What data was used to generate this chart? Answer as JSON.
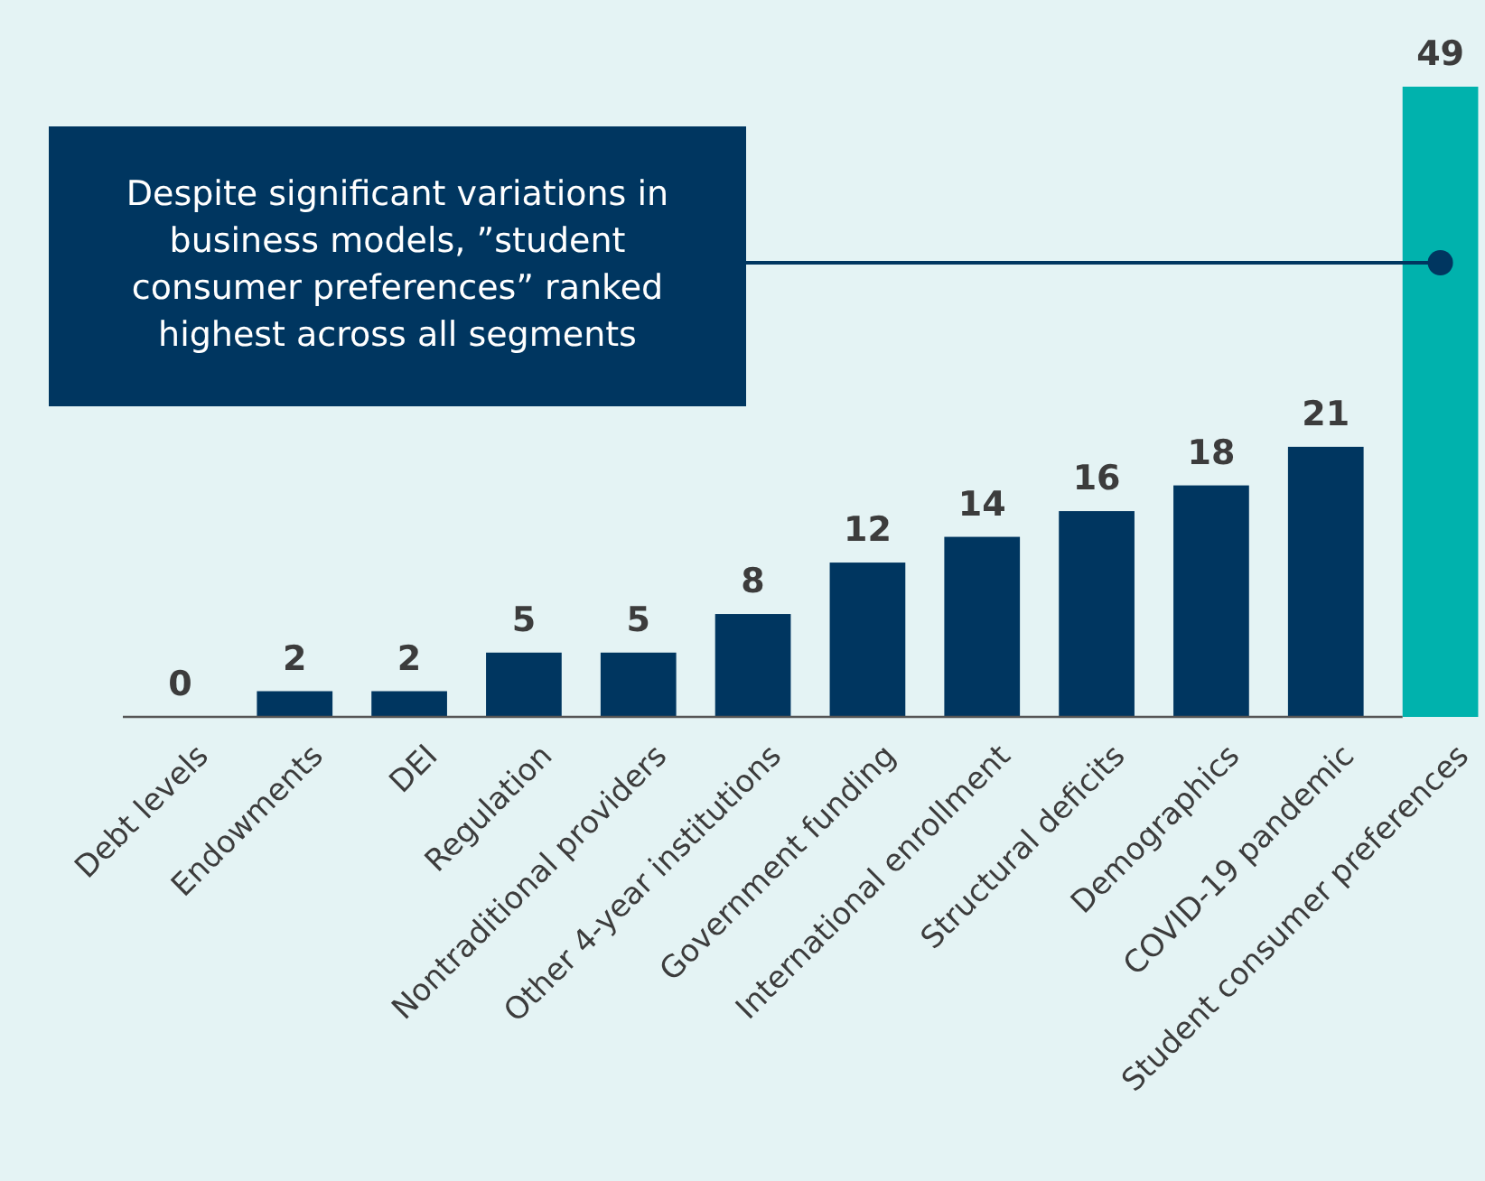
{
  "chart_data": {
    "type": "bar",
    "categories": [
      "Debt levels",
      "Endowments",
      "DEI",
      "Regulation",
      "Nontraditional providers",
      "Other 4-year institutions",
      "Government funding",
      "International enrollment",
      "Structural deficits",
      "Demographics",
      "COVID-19 pandemic",
      "Student consumer preferences"
    ],
    "values": [
      0,
      2,
      2,
      5,
      5,
      8,
      12,
      14,
      16,
      18,
      21,
      49
    ],
    "colors": [
      "#003660",
      "#003660",
      "#003660",
      "#003660",
      "#003660",
      "#003660",
      "#003660",
      "#003660",
      "#003660",
      "#003660",
      "#003660",
      "#00b2ad"
    ],
    "data_labels": true,
    "annotations": [
      "Despite significant variations in business models, ”student consumer preferences” ranked highest across all segments"
    ]
  }
}
